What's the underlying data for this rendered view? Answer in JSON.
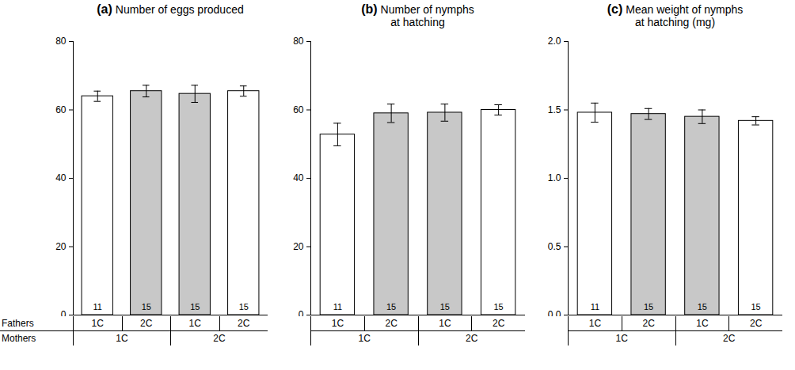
{
  "chart_data": [
    {
      "type": "bar",
      "panel": "(a)",
      "title": "Number of eggs produced",
      "categories": [
        "1C",
        "2C",
        "1C",
        "2C"
      ],
      "x_label": "Fathers",
      "groups": [
        "1C",
        "1C",
        "2C",
        "2C"
      ],
      "group_label": "Mothers",
      "values": [
        64,
        65.5,
        64.7,
        65.5
      ],
      "errors": [
        1.5,
        1.7,
        2.5,
        1.5
      ],
      "sample_sizes": [
        11,
        15,
        15,
        15
      ],
      "colors": [
        "#ffffff",
        "#c8c8c8",
        "#c8c8c8",
        "#ffffff"
      ],
      "ylim": [
        0,
        80
      ],
      "yticks": [
        0,
        20,
        40,
        60,
        80
      ]
    },
    {
      "type": "bar",
      "panel": "(b)",
      "title": "Number of nymphs\nat hatching",
      "categories": [
        "1C",
        "2C",
        "1C",
        "2C"
      ],
      "groups": [
        "1C",
        "1C",
        "2C",
        "2C"
      ],
      "values": [
        52.8,
        59,
        59.2,
        60
      ],
      "errors": [
        3.3,
        2.7,
        2.5,
        1.5
      ],
      "sample_sizes": [
        11,
        15,
        15,
        15
      ],
      "colors": [
        "#ffffff",
        "#c8c8c8",
        "#c8c8c8",
        "#ffffff"
      ],
      "ylim": [
        0,
        80
      ],
      "yticks": [
        0,
        20,
        40,
        60,
        80
      ]
    },
    {
      "type": "bar",
      "panel": "(c)",
      "title": "Mean weight of nymphs\nat hatching (mg)",
      "categories": [
        "1C",
        "2C",
        "1C",
        "2C"
      ],
      "groups": [
        "1C",
        "1C",
        "2C",
        "2C"
      ],
      "values": [
        1.48,
        1.47,
        1.45,
        1.42
      ],
      "errors": [
        0.07,
        0.04,
        0.05,
        0.03
      ],
      "sample_sizes": [
        11,
        15,
        15,
        15
      ],
      "colors": [
        "#ffffff",
        "#c8c8c8",
        "#c8c8c8",
        "#ffffff"
      ],
      "ylim": [
        0,
        2
      ],
      "yticks": [
        {
          "value": 0,
          "label": "0.0"
        },
        {
          "value": 0.5,
          "label": "0.5"
        },
        {
          "value": 1,
          "label": "1.0"
        },
        {
          "value": 1.5,
          "label": "1.5"
        },
        {
          "value": 2,
          "label": "2.0"
        }
      ]
    }
  ]
}
